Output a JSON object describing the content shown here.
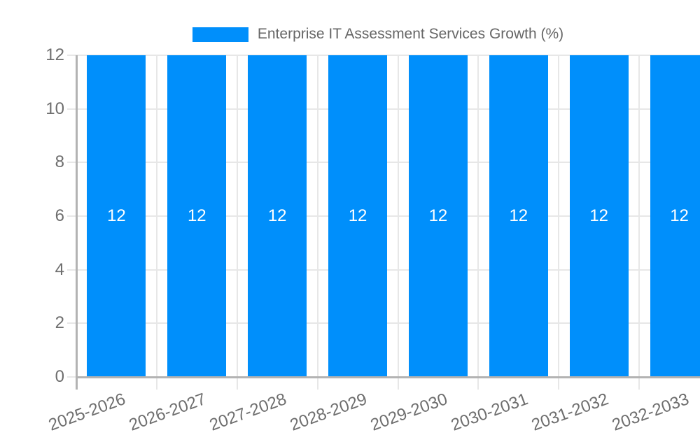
{
  "chart_data": {
    "type": "bar",
    "title": "Enterprise IT Assessment Services Growth (%)",
    "categories": [
      "2025-2026",
      "2026-2027",
      "2027-2028",
      "2028-2029",
      "2029-2030",
      "2030-2031",
      "2031-2032",
      "2032-2033"
    ],
    "values": [
      12,
      12,
      12,
      12,
      12,
      12,
      12,
      12
    ],
    "bar_value_labels": [
      "12",
      "12",
      "12",
      "12",
      "12",
      "12",
      "12",
      "12"
    ],
    "xlabel": "",
    "ylabel": "",
    "ylim": [
      0,
      12
    ],
    "yticks": [
      0,
      2,
      4,
      6,
      8,
      10,
      12
    ],
    "grid": true,
    "legend_position": "top",
    "colors": {
      "bar": "#008FFB",
      "bar_label_text": "#ffffff",
      "gridline": "#e7e7e7",
      "axis_line": "#b3b3b3",
      "tick_label_text": "#6e6e6e",
      "title_text": "#666666",
      "background": "#ffffff"
    }
  }
}
